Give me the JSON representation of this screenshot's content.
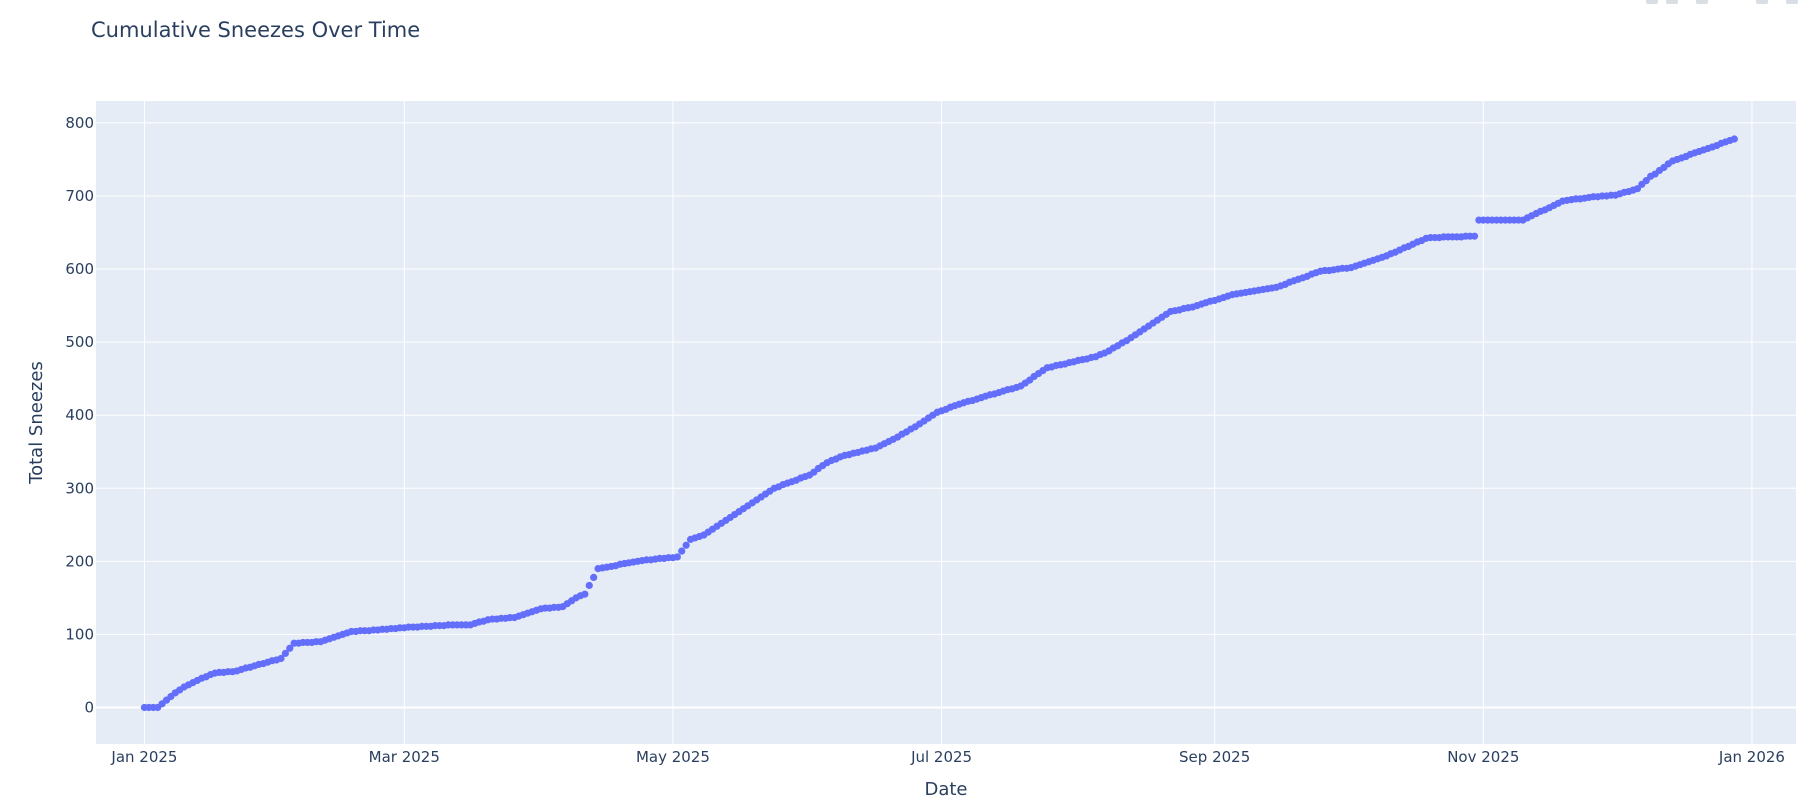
{
  "chart_data": {
    "type": "scatter",
    "title": "Cumulative Sneezes Over Time",
    "xlabel": "Date",
    "ylabel": "Total Sneezes",
    "xlim": [
      "2024-12-21",
      "2026-01-11"
    ],
    "ylim": [
      -50,
      830
    ],
    "x_ticks": [
      {
        "date": "2025-01-01",
        "label": "Jan 2025"
      },
      {
        "date": "2025-03-01",
        "label": "Mar 2025"
      },
      {
        "date": "2025-05-01",
        "label": "May 2025"
      },
      {
        "date": "2025-07-01",
        "label": "Jul 2025"
      },
      {
        "date": "2025-09-01",
        "label": "Sep 2025"
      },
      {
        "date": "2025-11-01",
        "label": "Nov 2025"
      },
      {
        "date": "2026-01-01",
        "label": "Jan 2026"
      }
    ],
    "y_ticks": [
      0,
      100,
      200,
      300,
      400,
      500,
      600,
      700,
      800
    ],
    "grid": true,
    "marker_color": "#636efa",
    "plot_background": "#e5ecf6",
    "series": [
      {
        "start_date": "2025-01-01",
        "end_date": "2025-12-28",
        "anchor_dates": [
          "2025-01-01",
          "2025-01-04",
          "2025-01-06",
          "2025-01-08",
          "2025-01-10",
          "2025-01-14",
          "2025-01-17",
          "2025-01-22",
          "2025-01-26",
          "2025-02-01",
          "2025-02-04",
          "2025-02-07",
          "2025-02-10",
          "2025-02-17",
          "2025-02-21",
          "2025-02-28",
          "2025-03-12",
          "2025-03-16",
          "2025-03-20",
          "2025-03-26",
          "2025-04-01",
          "2025-04-06",
          "2025-04-09",
          "2025-04-11",
          "2025-04-14",
          "2025-04-23",
          "2025-04-27",
          "2025-05-02",
          "2025-05-05",
          "2025-05-08",
          "2025-05-24",
          "2025-06-01",
          "2025-06-05",
          "2025-06-09",
          "2025-06-16",
          "2025-06-21",
          "2025-06-26",
          "2025-06-30",
          "2025-07-05",
          "2025-07-19",
          "2025-07-25",
          "2025-08-05",
          "2025-08-08",
          "2025-08-13",
          "2025-08-16",
          "2025-08-22",
          "2025-08-27",
          "2025-09-05",
          "2025-09-15",
          "2025-09-25",
          "2025-10-02",
          "2025-10-10",
          "2025-10-19",
          "2025-10-20",
          "2025-10-30",
          "2025-10-31",
          "2025-11-10",
          "2025-11-19",
          "2025-11-26",
          "2025-12-01",
          "2025-12-06",
          "2025-12-09",
          "2025-12-10",
          "2025-12-14",
          "2025-12-28"
        ],
        "anchor_values": [
          0,
          0,
          10,
          20,
          28,
          40,
          47,
          50,
          57,
          67,
          88,
          89,
          90,
          104,
          105,
          109,
          113,
          113,
          120,
          123,
          135,
          138,
          150,
          155,
          190,
          200,
          203,
          206,
          230,
          236,
          300,
          318,
          335,
          345,
          355,
          370,
          388,
          404,
          415,
          440,
          465,
          480,
          488,
          506,
          518,
          542,
          548,
          565,
          575,
          597,
          602,
          618,
          642,
          643,
          645,
          667,
          667,
          693,
          699,
          701,
          710,
          727,
          730,
          748,
          778
        ]
      }
    ]
  }
}
